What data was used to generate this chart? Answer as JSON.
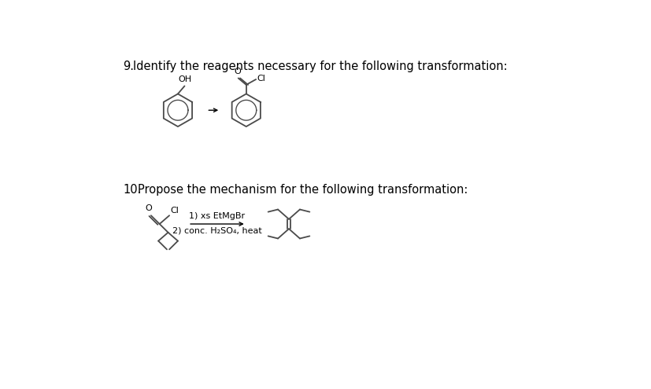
{
  "background_color": "#ffffff",
  "q9_label": "9.",
  "q9_text": "Identify the reagents necessary for the following transformation:",
  "q10_label": "10.",
  "q10_text": "Propose the mechanism for the following transformation:",
  "reagent_line1": "1) xs EtMgBr",
  "reagent_line2": "2) conc. H₂SO₄, heat",
  "arrow_color": "#000000",
  "line_color": "#4a4a4a",
  "text_color": "#000000",
  "font_size_label": 10.5,
  "font_size_text": 10.5,
  "font_size_reagent": 8.0,
  "font_size_atom": 8.0
}
